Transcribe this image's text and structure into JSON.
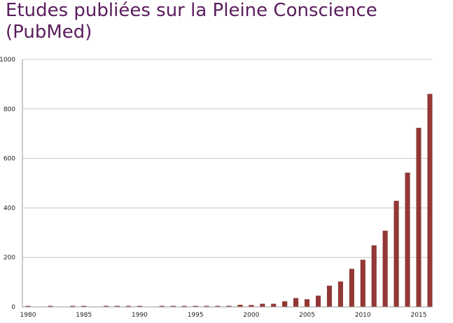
{
  "chart_data": {
    "type": "bar",
    "title": "Etudes publiées sur la Pleine Conscience (PubMed)",
    "xlabel": "",
    "ylabel": "",
    "ylim": [
      0,
      1000
    ],
    "yticks": [
      0,
      200,
      400,
      600,
      800,
      1000
    ],
    "xtick_labels": [
      "1980",
      "1985",
      "1990",
      "1995",
      "2000",
      "2005",
      "2010",
      "2015"
    ],
    "grid": true,
    "legend": "none",
    "bar_color": "#953735",
    "categories": [
      1980,
      1981,
      1982,
      1983,
      1984,
      1985,
      1986,
      1987,
      1988,
      1989,
      1990,
      1991,
      1992,
      1993,
      1994,
      1995,
      1996,
      1997,
      1998,
      1999,
      2000,
      2001,
      2002,
      2003,
      2004,
      2005,
      2006,
      2007,
      2008,
      2009,
      2010,
      2011,
      2012,
      2013,
      2014,
      2015,
      2016
    ],
    "values": [
      1,
      0,
      1,
      0,
      1,
      1,
      0,
      1,
      1,
      1,
      1,
      0,
      1,
      1,
      1,
      2,
      2,
      3,
      4,
      8,
      7,
      12,
      12,
      22,
      35,
      30,
      45,
      85,
      102,
      153,
      190,
      248,
      307,
      428,
      542,
      723,
      860
    ]
  }
}
